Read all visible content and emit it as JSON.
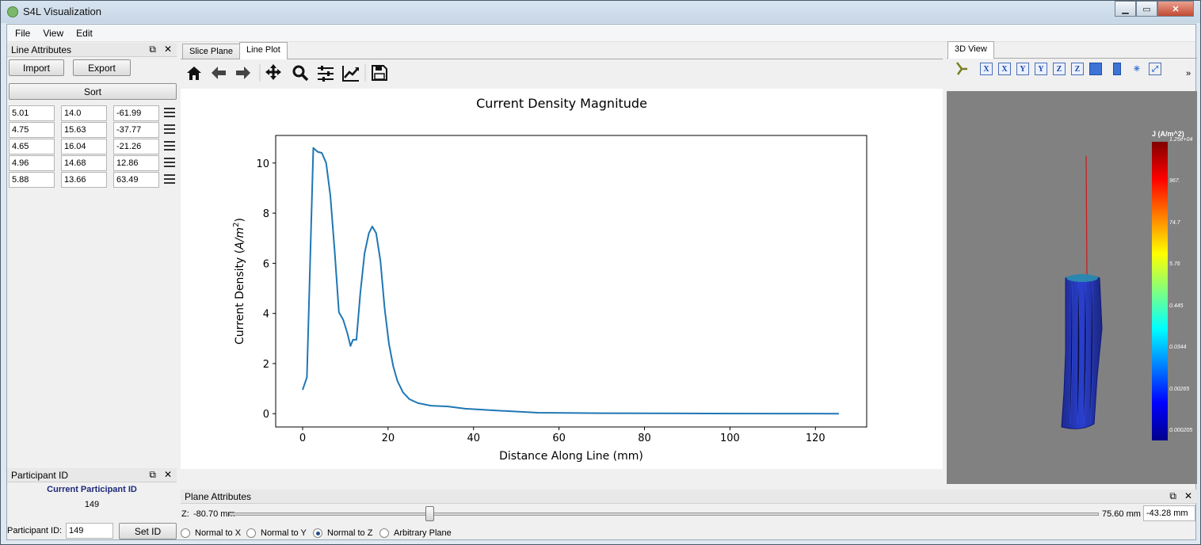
{
  "window": {
    "title": "S4L Visualization"
  },
  "menu": {
    "file": "File",
    "view": "View",
    "edit": "Edit"
  },
  "line_attributes": {
    "title": "Line Attributes",
    "import_label": "Import",
    "export_label": "Export",
    "sort_label": "Sort",
    "rows": [
      [
        "5.01",
        "14.0",
        "-61.99"
      ],
      [
        "4.75",
        "15.63",
        "-37.77"
      ],
      [
        "4.65",
        "16.04",
        "-21.26"
      ],
      [
        "4.96",
        "14.68",
        "12.86"
      ],
      [
        "5.88",
        "13.66",
        "63.49"
      ]
    ]
  },
  "participant": {
    "title": "Participant ID",
    "current_label": "Current Participant ID",
    "current_value": "149",
    "field_label": "Participant ID:",
    "field_value": "149",
    "set_label": "Set ID"
  },
  "tabs": {
    "slice_plane": "Slice Plane",
    "line_plot": "Line Plot",
    "view3d": "3D View"
  },
  "toolbar_icons": [
    "home-icon",
    "back-arrow-icon",
    "forward-arrow-icon",
    "pan-icon",
    "zoom-icon",
    "subplots-config-icon",
    "axes-edit-icon",
    "save-icon"
  ],
  "view3d_toolbar": {
    "icons": [
      "orient-axes-icon",
      "x-view-icon",
      "x-view-neg-icon",
      "y-view-icon",
      "y-view-neg-icon",
      "z-view-icon",
      "z-view-neg-icon",
      "iso-view-icon",
      "split-icon",
      "reset-camera-icon",
      "fit-view-icon",
      "more-icon"
    ],
    "x": "X",
    "y": "Y",
    "z": "Z",
    "more": "»"
  },
  "colorbar": {
    "title": "J (A/m^2)",
    "labels": [
      "1.25e+04",
      "967.",
      "74.7",
      "5.76",
      "0.445",
      "0.0344",
      "0.00265",
      "0.000205"
    ]
  },
  "chart_data": {
    "type": "line",
    "title": "Current Density Magnitude",
    "xlabel": "Distance Along Line (mm)",
    "ylabel": "Current Density (A/m²)",
    "ylabel_parts": {
      "prefix": "Current Density (",
      "unit": "A/m",
      "exp": "2",
      "suffix": ")"
    },
    "xlim": [
      -6.3,
      132
    ],
    "ylim": [
      -0.53,
      11.1
    ],
    "xticks": [
      0,
      20,
      40,
      60,
      80,
      100,
      120
    ],
    "yticks": [
      0,
      2,
      4,
      6,
      8,
      10
    ],
    "grid": false,
    "series": [
      {
        "x": [
          0,
          1,
          2.5,
          3.5,
          4.5,
          5.5,
          6.5,
          7.5,
          8.5,
          9.5,
          10.5,
          11.2,
          11.8,
          12.6,
          13.5,
          14.5,
          15.5,
          16.3,
          17.2,
          18.2,
          19.2,
          20.2,
          21.2,
          22.2,
          23.5,
          25,
          27,
          30,
          34,
          38,
          45,
          55,
          70,
          90,
          110,
          125.5
        ],
        "y": [
          0.95,
          1.45,
          10.6,
          10.45,
          10.4,
          10.0,
          8.7,
          6.5,
          4.05,
          3.75,
          3.2,
          2.7,
          2.95,
          2.95,
          4.8,
          6.4,
          7.2,
          7.47,
          7.2,
          6.1,
          4.2,
          2.8,
          1.9,
          1.3,
          0.85,
          0.58,
          0.42,
          0.32,
          0.29,
          0.2,
          0.13,
          0.04,
          0.02,
          0.01,
          0.005,
          0.0
        ]
      }
    ]
  },
  "plane": {
    "title": "Plane Attributes",
    "z_label": "Z:",
    "min_label": "-80.70 mm",
    "max_label": "75.60 mm",
    "value": "-43.28 mm",
    "slider_fraction": 0.23,
    "normal_x": "Normal to X",
    "normal_y": "Normal to Y",
    "normal_z": "Normal to Z",
    "arbitrary": "Arbitrary Plane",
    "selected": "Normal to Z"
  }
}
